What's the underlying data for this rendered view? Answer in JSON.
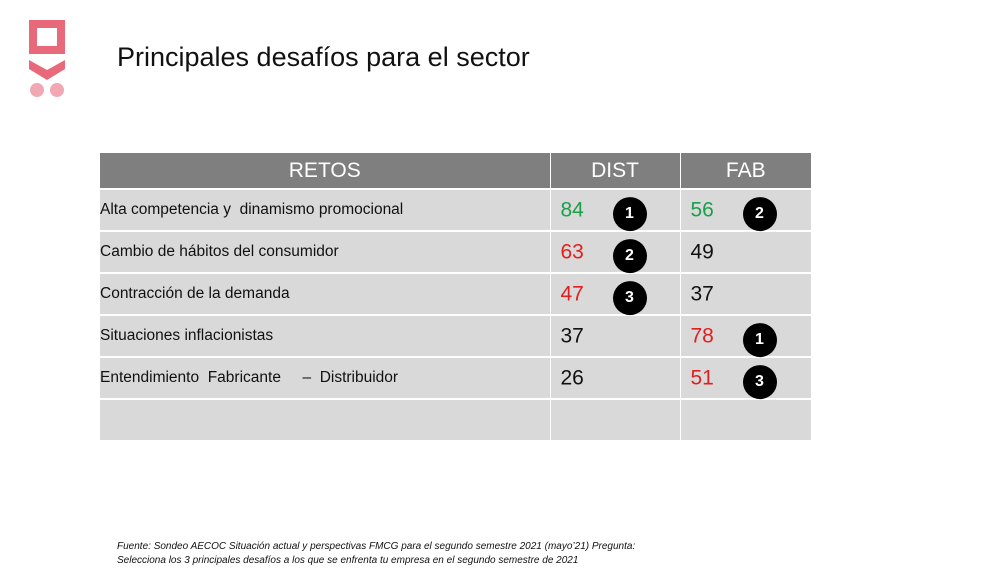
{
  "slide": {
    "title": "Principales desafíos para el sector"
  },
  "colors": {
    "green": "#1aa049",
    "red": "#e02020",
    "black": "#111111",
    "header_bg": "#7f7f7f",
    "row_bg": "#d9d9d9",
    "logo": "#e8697a"
  },
  "table": {
    "headers": [
      "RETOS",
      "DIST",
      "FAB"
    ],
    "rows": [
      {
        "reto": "Alta competencia y  dinamismo promocional",
        "dist": {
          "value": "84",
          "color": "green",
          "rank": "1"
        },
        "fab": {
          "value": "56",
          "color": "green",
          "rank": "2"
        }
      },
      {
        "reto": "Cambio de hábitos del consumidor",
        "dist": {
          "value": "63",
          "color": "red",
          "rank": "2"
        },
        "fab": {
          "value": "49",
          "color": "black",
          "rank": ""
        }
      },
      {
        "reto": "Contracción de la demanda",
        "dist": {
          "value": "47",
          "color": "red",
          "rank": "3"
        },
        "fab": {
          "value": "37",
          "color": "black",
          "rank": ""
        }
      },
      {
        "reto": "Situaciones inflacionistas",
        "dist": {
          "value": "37",
          "color": "black",
          "rank": ""
        },
        "fab": {
          "value": "78",
          "color": "red",
          "rank": "1"
        }
      },
      {
        "reto": "Entendimiento  Fabricante     –  Distribuidor",
        "dist": {
          "value": "26",
          "color": "black",
          "rank": ""
        },
        "fab": {
          "value": "51",
          "color": "red",
          "rank": "3"
        }
      },
      {
        "reto": "",
        "dist": {
          "value": "",
          "color": "black",
          "rank": ""
        },
        "fab": {
          "value": "",
          "color": "black",
          "rank": ""
        }
      }
    ]
  },
  "footnote": {
    "line1": "Fuente: Sondeo AECOC Situación actual y perspectivas FMCG para el segundo semestre 2021 (mayo’21) Pregunta:",
    "line2": "Selecciona los 3 principales desafíos a los que se enfrenta tu empresa en el segundo semestre de 2021"
  }
}
